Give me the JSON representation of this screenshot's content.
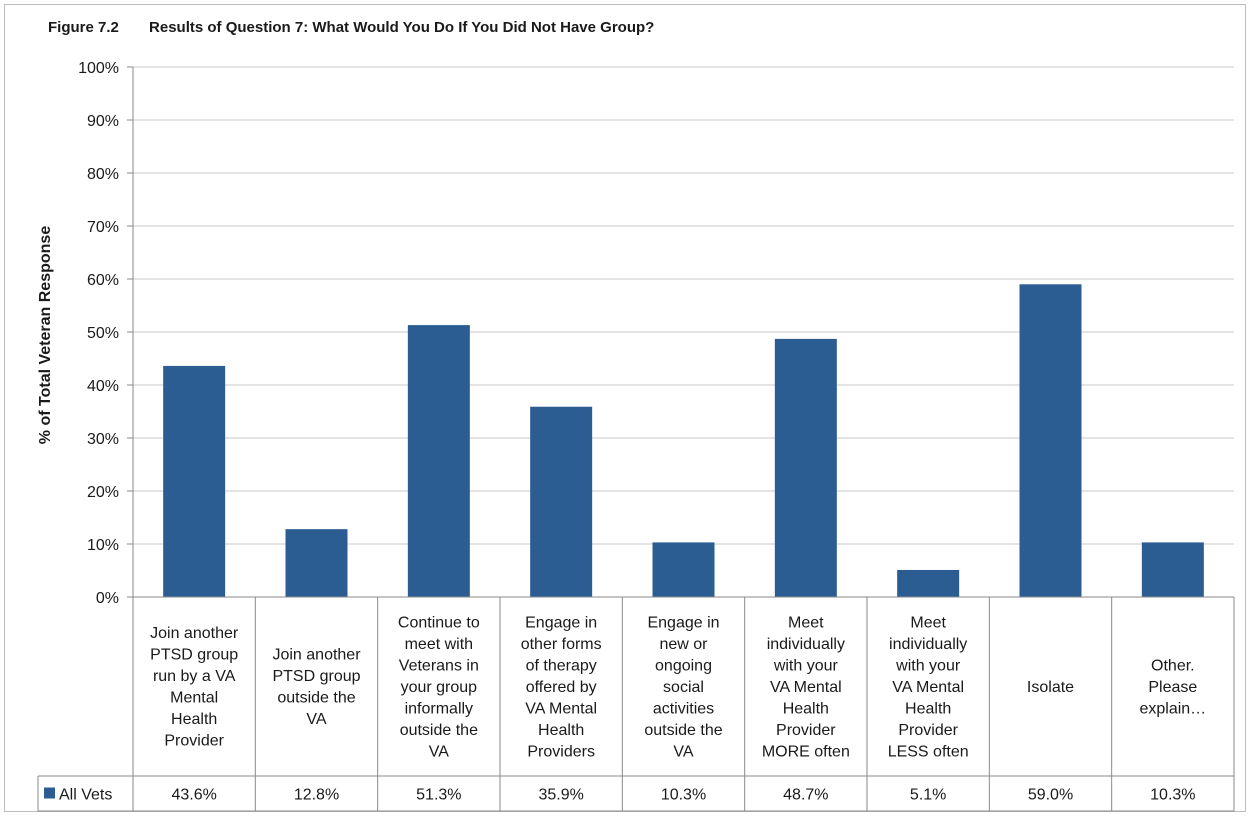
{
  "figure": {
    "label": "Figure 7.2",
    "title": "Results of Question 7: What Would You Do If You Did Not Have Group?"
  },
  "chart_data": {
    "type": "bar",
    "ylabel": "% of Total Veteran Response",
    "xlabel": "",
    "ylim": [
      0,
      100
    ],
    "yticks": [
      "0%",
      "10%",
      "20%",
      "30%",
      "40%",
      "50%",
      "60%",
      "70%",
      "80%",
      "90%",
      "100%"
    ],
    "grid": true,
    "legend": "table-left",
    "categories": [
      [
        "Join another",
        "PTSD group",
        "run by a VA",
        "Mental",
        "Health",
        "Provider"
      ],
      [
        "Join another",
        "PTSD group",
        "outside the",
        "VA"
      ],
      [
        "Continue to",
        "meet with",
        "Veterans in",
        "your group",
        "informally",
        "outside the",
        "VA"
      ],
      [
        "Engage in",
        "other forms",
        "of therapy",
        "offered by",
        "VA Mental",
        "Health",
        "Providers"
      ],
      [
        "Engage in",
        "new or",
        "ongoing",
        "social",
        "activities",
        "outside the",
        "VA"
      ],
      [
        "Meet",
        "individually",
        "with your",
        "VA Mental",
        "Health",
        "Provider",
        "MORE often"
      ],
      [
        "Meet",
        "individually",
        "with your",
        "VA Mental",
        "Health",
        "Provider",
        "LESS often"
      ],
      [
        "Isolate"
      ],
      [
        "Other.",
        "Please",
        "explain…"
      ]
    ],
    "series": [
      {
        "name": "All Vets",
        "color": "#2b5c92",
        "values": [
          43.6,
          12.8,
          51.3,
          35.9,
          10.3,
          48.7,
          5.1,
          59.0,
          10.3
        ],
        "value_labels": [
          "43.6%",
          "12.8%",
          "51.3%",
          "35.9%",
          "10.3%",
          "48.7%",
          "5.1%",
          "59.0%",
          "10.3%"
        ]
      }
    ]
  }
}
